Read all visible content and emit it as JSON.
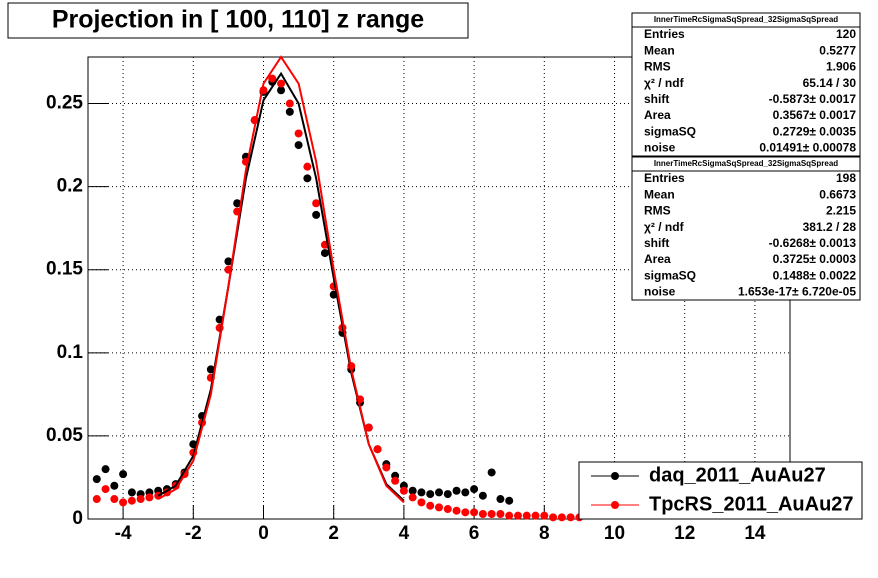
{
  "chart_data": {
    "type": "scatter",
    "title": "Projection in [ 100, 110] z range",
    "xlim": [
      -5,
      15
    ],
    "ylim": [
      0,
      0.278
    ],
    "xticks": [
      -4,
      -2,
      0,
      2,
      4,
      6,
      8,
      10,
      12,
      14
    ],
    "yticks": [
      0,
      0.05,
      0.1,
      0.15,
      0.2,
      0.25
    ],
    "grid": true,
    "legend": "lower right",
    "series": [
      {
        "name": "daq_2011_AuAu27",
        "color": "#000000",
        "x": [
          -4.75,
          -4.5,
          -4.25,
          -4.0,
          -3.75,
          -3.5,
          -3.25,
          -3.0,
          -2.75,
          -2.5,
          -2.25,
          -2.0,
          -1.75,
          -1.5,
          -1.25,
          -1.0,
          -0.75,
          -0.5,
          -0.25,
          0,
          0.25,
          0.5,
          0.75,
          1.0,
          1.25,
          1.5,
          1.75,
          2.0,
          2.25,
          2.5,
          2.75,
          3.0,
          3.25,
          3.5,
          3.75,
          4.0,
          4.25,
          4.5,
          4.75,
          5.0,
          5.25,
          5.5,
          5.75,
          6.0,
          6.25,
          6.5,
          6.75,
          7.0
        ],
        "values": [
          0.024,
          0.03,
          0.02,
          0.027,
          0.016,
          0.015,
          0.016,
          0.017,
          0.018,
          0.021,
          0.028,
          0.045,
          0.062,
          0.09,
          0.12,
          0.155,
          0.19,
          0.218,
          0.24,
          0.257,
          0.263,
          0.258,
          0.245,
          0.225,
          0.205,
          0.183,
          0.16,
          0.135,
          0.112,
          0.09,
          0.07,
          0.055,
          0.042,
          0.033,
          0.026,
          0.02,
          0.017,
          0.016,
          0.015,
          0.016,
          0.015,
          0.017,
          0.016,
          0.018,
          0.014,
          0.028,
          0.012,
          0.011
        ]
      },
      {
        "name": "TpcRS_2011_AuAu27",
        "color": "#ff0000",
        "x": [
          -4.75,
          -4.5,
          -4.25,
          -4.0,
          -3.75,
          -3.5,
          -3.25,
          -3.0,
          -2.75,
          -2.5,
          -2.25,
          -2.0,
          -1.75,
          -1.5,
          -1.25,
          -1.0,
          -0.75,
          -0.5,
          -0.25,
          0,
          0.25,
          0.5,
          0.75,
          1.0,
          1.25,
          1.5,
          1.75,
          2.0,
          2.25,
          2.5,
          2.75,
          3.0,
          3.25,
          3.5,
          3.75,
          4.0,
          4.25,
          4.5,
          4.75,
          5.0,
          5.25,
          5.5,
          5.75,
          6.0,
          6.25,
          6.5,
          6.75,
          7.0,
          7.25,
          7.5,
          7.75,
          8.0,
          8.25,
          8.5,
          8.75,
          9.0
        ],
        "values": [
          0.012,
          0.018,
          0.012,
          0.01,
          0.011,
          0.012,
          0.013,
          0.014,
          0.016,
          0.02,
          0.027,
          0.04,
          0.058,
          0.085,
          0.115,
          0.15,
          0.185,
          0.215,
          0.24,
          0.258,
          0.265,
          0.262,
          0.25,
          0.232,
          0.212,
          0.19,
          0.165,
          0.14,
          0.115,
          0.092,
          0.072,
          0.055,
          0.042,
          0.031,
          0.023,
          0.017,
          0.013,
          0.01,
          0.008,
          0.007,
          0.006,
          0.005,
          0.004,
          0.004,
          0.003,
          0.003,
          0.003,
          0.002,
          0.002,
          0.002,
          0.002,
          0.002,
          0.001,
          0.001,
          0.001,
          0.001
        ]
      }
    ],
    "fits": [
      {
        "color": "#000000",
        "x": [
          -3,
          -2.5,
          -2,
          -1.5,
          -1,
          -0.5,
          0,
          0.5,
          1,
          1.5,
          2,
          2.5,
          3,
          3.5,
          4
        ],
        "values": [
          0.014,
          0.02,
          0.038,
          0.078,
          0.14,
          0.205,
          0.252,
          0.268,
          0.25,
          0.205,
          0.145,
          0.088,
          0.045,
          0.021,
          0.011
        ]
      },
      {
        "color": "#ff0000",
        "x": [
          -3,
          -2.5,
          -2,
          -1.5,
          -1,
          -0.5,
          0,
          0.5,
          1,
          1.5,
          2,
          2.5,
          3,
          3.5,
          4
        ],
        "values": [
          0.012,
          0.018,
          0.035,
          0.075,
          0.14,
          0.21,
          0.262,
          0.278,
          0.262,
          0.215,
          0.15,
          0.09,
          0.045,
          0.02,
          0.01
        ]
      }
    ]
  },
  "stats_boxes": [
    {
      "title": "InnerTimeRcSigmaSqSpread_32SigmaSqSpread",
      "rows": [
        [
          "Entries",
          "120"
        ],
        [
          "Mean",
          "0.5277"
        ],
        [
          "RMS",
          "1.906"
        ],
        [
          "χ² / ndf",
          "65.14 / 30"
        ],
        [
          "shift",
          "-0.5873± 0.0017"
        ],
        [
          "Area",
          "0.3567± 0.0017"
        ],
        [
          "sigmaSQ",
          "0.2729± 0.0035"
        ],
        [
          "noise",
          "0.01491± 0.00078"
        ]
      ]
    },
    {
      "title": "InnerTimeRcSigmaSqSpread_32SigmaSqSpread",
      "rows": [
        [
          "Entries",
          "198"
        ],
        [
          "Mean",
          "0.6673"
        ],
        [
          "RMS",
          "2.215"
        ],
        [
          "χ² / ndf",
          "381.2 / 28"
        ],
        [
          "shift",
          "-0.6268± 0.0013"
        ],
        [
          "Area",
          "0.3725± 0.0003"
        ],
        [
          "sigmaSQ",
          "0.1488± 0.0022"
        ],
        [
          "noise",
          "1.653e-17± 6.720e-05"
        ]
      ]
    }
  ]
}
